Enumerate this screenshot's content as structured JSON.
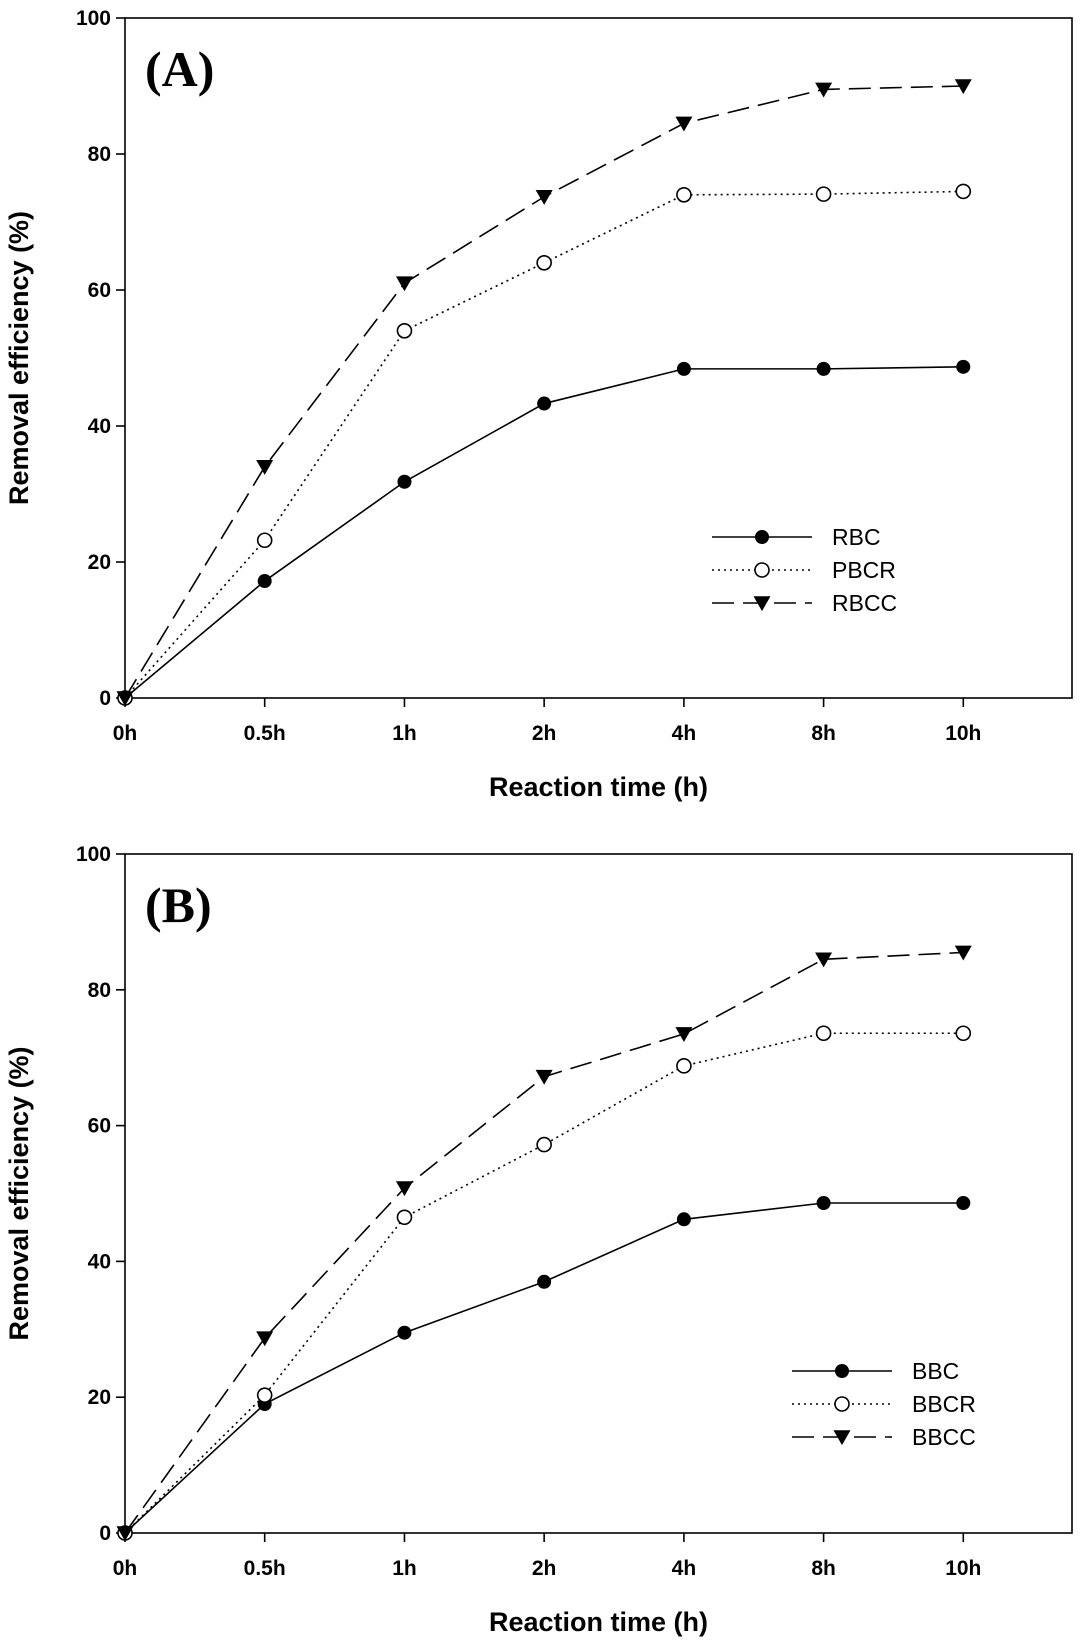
{
  "chart_data": [
    {
      "type": "line",
      "panel_label": "(A)",
      "categories": [
        "0h",
        "0.5h",
        "1h",
        "2h",
        "4h",
        "8h",
        "10h"
      ],
      "xlabel": "Reaction time (h)",
      "ylabel": "Removal efficiency (%)",
      "ylim": [
        0,
        100
      ],
      "yticks": [
        "0",
        "20",
        "40",
        "60",
        "80",
        "100"
      ],
      "legend_position": "center-right",
      "series": [
        {
          "name": "RBC",
          "style": "solid-filled-circle",
          "color": "#000000",
          "values": [
            0,
            17.2,
            31.8,
            43.3,
            48.4,
            48.4,
            48.7
          ]
        },
        {
          "name": "PBCR",
          "style": "dotted-open-circle",
          "color": "#000000",
          "values": [
            0,
            23.2,
            54,
            64,
            74,
            74.1,
            74.5
          ]
        },
        {
          "name": "RBCC",
          "style": "dashed-filled-triangle",
          "color": "#000000",
          "values": [
            0,
            34,
            61,
            73.7,
            84.5,
            89.5,
            90
          ]
        }
      ]
    },
    {
      "type": "line",
      "panel_label": "(B)",
      "categories": [
        "0h",
        "0.5h",
        "1h",
        "2h",
        "4h",
        "8h",
        "10h"
      ],
      "xlabel": "Reaction time (h)",
      "ylabel": "Removal efficiency (%)",
      "ylim": [
        0,
        100
      ],
      "yticks": [
        "0",
        "20",
        "40",
        "60",
        "80",
        "100"
      ],
      "legend_position": "center-right",
      "series": [
        {
          "name": "BBC",
          "style": "solid-filled-circle",
          "color": "#000000",
          "values": [
            0,
            19,
            29.5,
            37,
            46.2,
            48.6,
            48.6
          ]
        },
        {
          "name": "BBCR",
          "style": "dotted-open-circle",
          "color": "#000000",
          "values": [
            0,
            20.3,
            46.5,
            57.2,
            68.8,
            73.6,
            73.6
          ]
        },
        {
          "name": "BBCC",
          "style": "dashed-filled-triangle",
          "color": "#000000",
          "values": [
            0,
            28.7,
            50.8,
            67.2,
            73.5,
            84.5,
            85.5
          ]
        }
      ]
    }
  ]
}
